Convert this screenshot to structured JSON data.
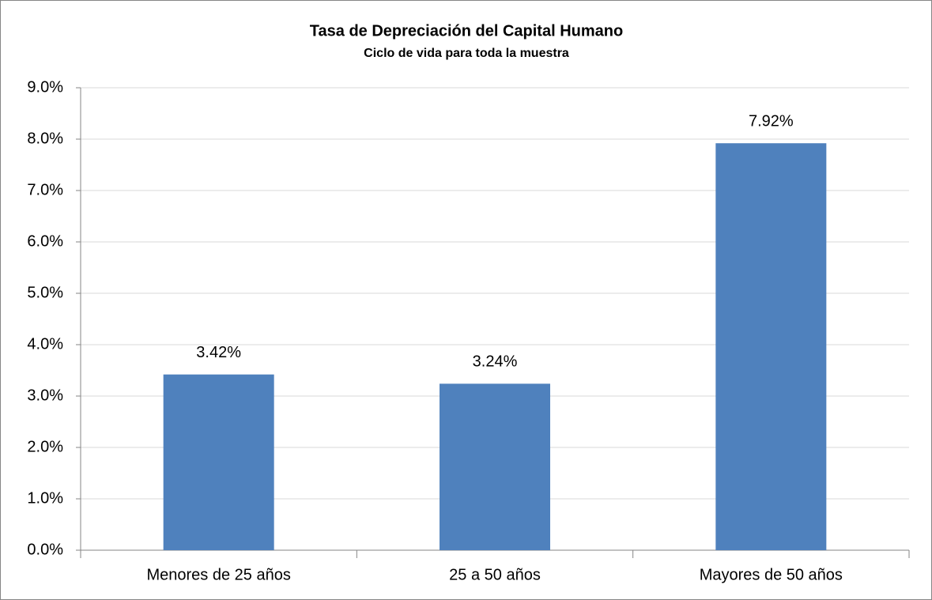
{
  "chart_data": {
    "type": "bar",
    "title": "Tasa de Depreciación del Capital Humano",
    "subtitle": "Ciclo de vida para toda la muestra",
    "categories": [
      "Menores de 25 años",
      "25 a 50 años",
      "Mayores de 50 años"
    ],
    "values": [
      3.42,
      3.24,
      7.92
    ],
    "value_labels": [
      "3.42%",
      "3.24%",
      "7.92%"
    ],
    "color": "#4f81bd",
    "ylim": [
      0,
      9
    ],
    "yticks": [
      {
        "value": 0,
        "label": "0.0%"
      },
      {
        "value": 1,
        "label": "1.0%"
      },
      {
        "value": 2,
        "label": "2.0%"
      },
      {
        "value": 3,
        "label": "3.0%"
      },
      {
        "value": 4,
        "label": "4.0%"
      },
      {
        "value": 5,
        "label": "5.0%"
      },
      {
        "value": 6,
        "label": "6.0%"
      },
      {
        "value": 7,
        "label": "7.0%"
      },
      {
        "value": 8,
        "label": "8.0%"
      },
      {
        "value": 9,
        "label": "9.0%"
      }
    ],
    "grid": true
  }
}
